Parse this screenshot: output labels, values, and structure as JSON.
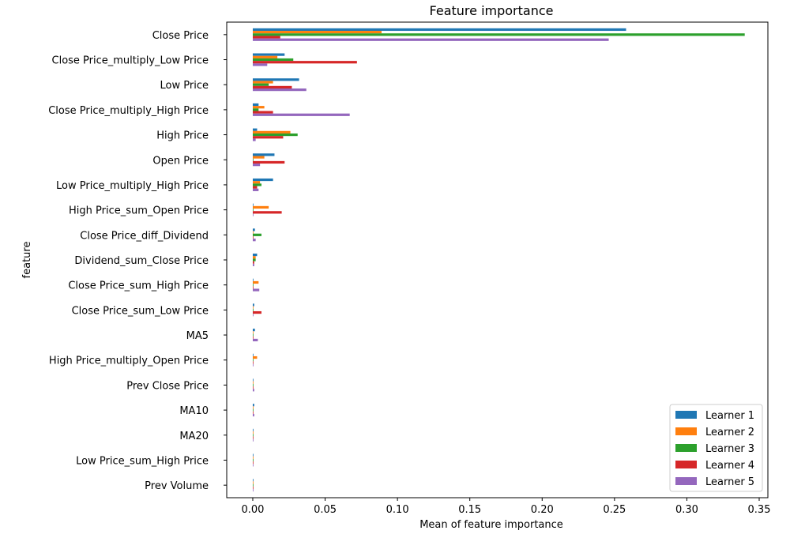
{
  "chart_data": {
    "type": "bar",
    "orientation": "horizontal",
    "title": "Feature importance",
    "xlabel": "Mean of feature importance",
    "ylabel": "feature",
    "xlim": [
      -0.018,
      0.356
    ],
    "xticks": [
      "0.00",
      "0.05",
      "0.10",
      "0.15",
      "0.20",
      "0.25",
      "0.30",
      "0.35"
    ],
    "xtick_values": [
      0,
      0.05,
      0.1,
      0.15,
      0.2,
      0.25,
      0.3,
      0.35
    ],
    "legend_position": "lower-right",
    "grid": false,
    "categories": [
      "Close Price",
      "Close Price_multiply_Low Price",
      "Low Price",
      "Close Price_multiply_High Price",
      "High Price",
      "Open Price",
      "Low Price_multiply_High Price",
      "High Price_sum_Open Price",
      "Close Price_diff_Dividend",
      "Dividend_sum_Close Price",
      "Close Price_sum_High Price",
      "Close Price_sum_Low Price",
      "MA5",
      "High Price_multiply_Open Price",
      "Prev Close Price",
      "MA10",
      "MA20",
      "Low Price_sum_High Price",
      "Prev Volume"
    ],
    "series": [
      {
        "name": "Learner 1",
        "color": "#1f77b4",
        "values": [
          0.258,
          0.022,
          0.032,
          0.004,
          0.003,
          0.015,
          0.014,
          0.0,
          0.0015,
          0.003,
          0.0,
          0.001,
          0.0015,
          0.0,
          0.0,
          0.001,
          0.0,
          0.0,
          0.0
        ]
      },
      {
        "name": "Learner 2",
        "color": "#ff7f0e",
        "values": [
          0.089,
          0.017,
          0.014,
          0.008,
          0.026,
          0.008,
          0.005,
          0.011,
          0.0,
          0.002,
          0.004,
          0.0,
          0.0,
          0.003,
          0.0,
          0.0,
          0.0,
          0.0,
          0.0
        ]
      },
      {
        "name": "Learner 3",
        "color": "#2ca02c",
        "values": [
          0.34,
          0.028,
          0.011,
          0.004,
          0.031,
          0.0,
          0.006,
          0.0,
          0.006,
          0.002,
          0.0,
          0.0,
          0.0,
          0.0,
          0.0,
          0.0,
          0.0,
          0.0,
          0.0
        ]
      },
      {
        "name": "Learner 4",
        "color": "#d62728",
        "values": [
          0.019,
          0.072,
          0.027,
          0.014,
          0.021,
          0.022,
          0.003,
          0.02,
          0.0,
          0.001,
          0.0,
          0.006,
          0.0,
          0.0,
          0.0,
          0.0,
          0.0,
          0.0,
          0.0
        ]
      },
      {
        "name": "Learner 5",
        "color": "#9467bd",
        "values": [
          0.246,
          0.01,
          0.037,
          0.067,
          0.002,
          0.005,
          0.004,
          0.0,
          0.002,
          0.001,
          0.0045,
          0.0,
          0.0035,
          0.0,
          0.001,
          0.001,
          0.0,
          0.0,
          0.0
        ]
      }
    ]
  }
}
